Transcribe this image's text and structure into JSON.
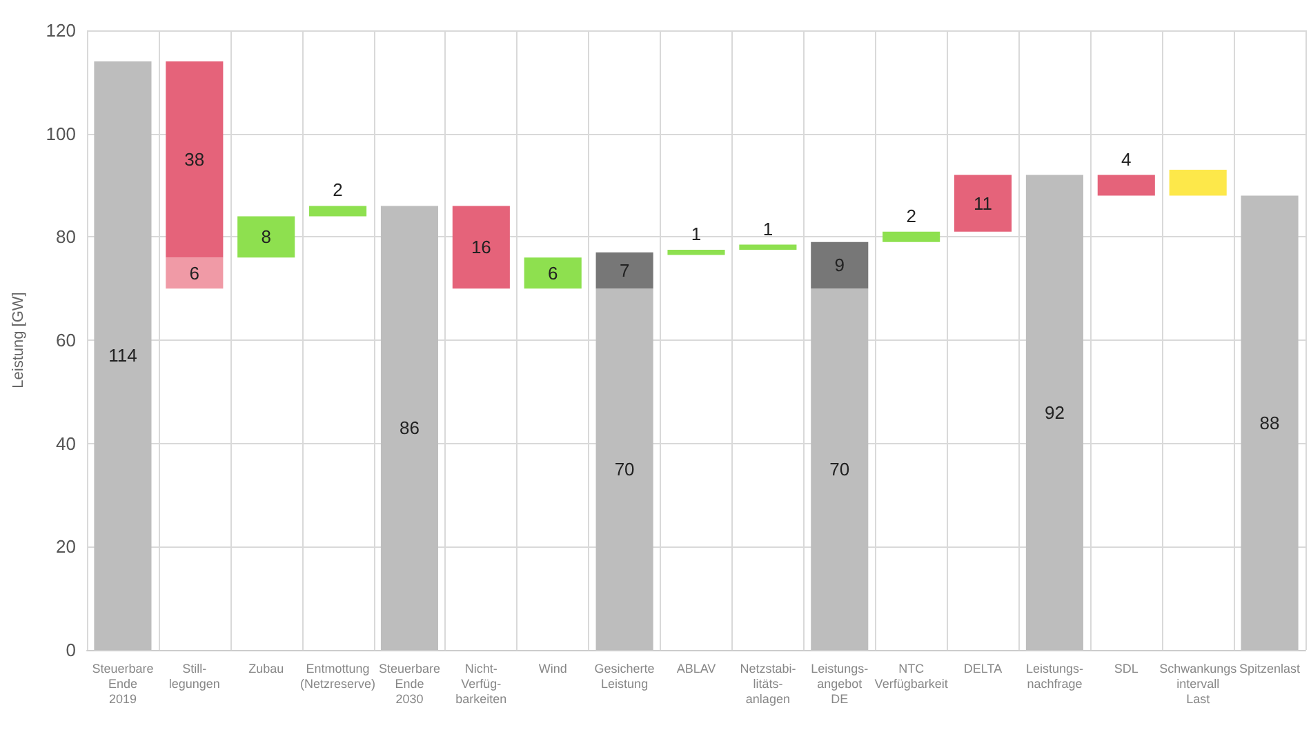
{
  "chart_data": {
    "type": "bar",
    "ylabel": "Leistung [GW]",
    "categories": [
      "Steuerbare\nEnde\n2019",
      "Still-\nlegungen",
      "Zubau",
      "Entmottung\n(Netzreserve)",
      "Steuerbare\nEnde\n2030",
      "Nicht-\nVerfüg-\nbarkeiten",
      "Wind",
      "Gesicherte\nLeistung",
      "ABLAV",
      "Netzstabi-\nlitäts-\nanlagen",
      "Leistungs-\nangebot\nDE",
      "NTC\nVerfügbarkeit",
      "DELTA",
      "Leistungs-\nnachfrage",
      "SDL",
      "Schwankungs\nintervall\nLast",
      "Spitzenlast"
    ],
    "series": [
      {
        "colors": [
          "#bdbdbd",
          "#f09aa6",
          "#8ee04f",
          "#8ee04f",
          "#bdbdbd",
          "#e5637a",
          "#8ee04f",
          "#bdbdbd",
          "#8ee04f",
          "#8ee04f",
          "#bdbdbd",
          "#8ee04f",
          "#e5637a",
          "#bdbdbd",
          "#e5637a",
          "#fde84a",
          "#bdbdbd"
        ],
        "base": [
          0,
          70,
          76,
          84,
          0,
          70,
          70,
          0,
          76.5,
          77.5,
          0,
          79,
          81,
          0,
          88,
          88,
          0
        ],
        "values": [
          114,
          6,
          8,
          2,
          86,
          16,
          6,
          70,
          1,
          1,
          70,
          2,
          11,
          92,
          4,
          5,
          88
        ],
        "value_labels": [
          "114",
          "6",
          "8",
          "2",
          "86",
          "16",
          "6",
          "70",
          "1",
          "1",
          "70",
          "2",
          "11",
          "92",
          "4",
          null,
          "88"
        ]
      },
      {
        "colors": [
          null,
          "#e5637a",
          null,
          null,
          null,
          null,
          null,
          "#777777",
          null,
          null,
          "#777777",
          null,
          null,
          null,
          null,
          null,
          null
        ],
        "base": [
          null,
          76,
          null,
          null,
          null,
          null,
          null,
          70,
          null,
          null,
          70,
          null,
          null,
          null,
          null,
          null,
          null
        ],
        "values": [
          null,
          38,
          null,
          null,
          null,
          null,
          null,
          7,
          null,
          null,
          9,
          null,
          null,
          null,
          null,
          null,
          null
        ],
        "value_labels": [
          null,
          "38",
          null,
          null,
          null,
          null,
          null,
          "7",
          null,
          null,
          "9",
          null,
          null,
          null,
          null,
          null,
          null
        ]
      }
    ],
    "ylim": [
      0,
      120
    ],
    "yticks": [
      0,
      20,
      40,
      60,
      80,
      100,
      120
    ],
    "grid": true
  }
}
